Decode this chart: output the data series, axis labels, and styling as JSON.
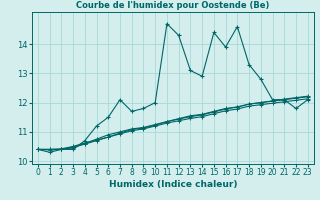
{
  "title": "Courbe de l'humidex pour Oostende (Be)",
  "xlabel": "Humidex (Indice chaleur)",
  "background_color": "#d4eeee",
  "grid_color": "#a8d8d8",
  "line_color": "#006666",
  "x_values": [
    0,
    1,
    2,
    3,
    4,
    5,
    6,
    7,
    8,
    9,
    10,
    11,
    12,
    13,
    14,
    15,
    16,
    17,
    18,
    19,
    20,
    21,
    22,
    23
  ],
  "series1": [
    10.4,
    10.3,
    10.4,
    10.4,
    10.7,
    11.2,
    11.5,
    12.1,
    11.7,
    11.8,
    12.0,
    14.7,
    14.3,
    13.1,
    12.9,
    14.4,
    13.9,
    14.6,
    13.3,
    12.8,
    12.1,
    12.1,
    11.8,
    12.1
  ],
  "series2": [
    10.4,
    10.4,
    10.4,
    10.45,
    10.6,
    10.75,
    10.9,
    11.0,
    11.1,
    11.15,
    11.25,
    11.35,
    11.45,
    11.55,
    11.6,
    11.7,
    11.8,
    11.85,
    11.95,
    12.0,
    12.05,
    12.1,
    12.15,
    12.2
  ],
  "series3": [
    10.4,
    10.4,
    10.42,
    10.5,
    10.62,
    10.72,
    10.82,
    10.93,
    11.04,
    11.1,
    11.2,
    11.3,
    11.38,
    11.46,
    11.52,
    11.62,
    11.72,
    11.78,
    11.88,
    11.93,
    11.98,
    12.03,
    12.08,
    12.13
  ],
  "series4": [
    10.4,
    10.38,
    10.4,
    10.48,
    10.58,
    10.7,
    10.82,
    10.96,
    11.08,
    11.13,
    11.23,
    11.35,
    11.44,
    11.52,
    11.58,
    11.68,
    11.78,
    11.85,
    11.95,
    12.0,
    12.06,
    12.12,
    12.17,
    12.22
  ],
  "ylim": [
    9.9,
    15.1
  ],
  "yticks": [
    10,
    11,
    12,
    13,
    14
  ],
  "xticks": [
    0,
    1,
    2,
    3,
    4,
    5,
    6,
    7,
    8,
    9,
    10,
    11,
    12,
    13,
    14,
    15,
    16,
    17,
    18,
    19,
    20,
    21,
    22,
    23
  ]
}
